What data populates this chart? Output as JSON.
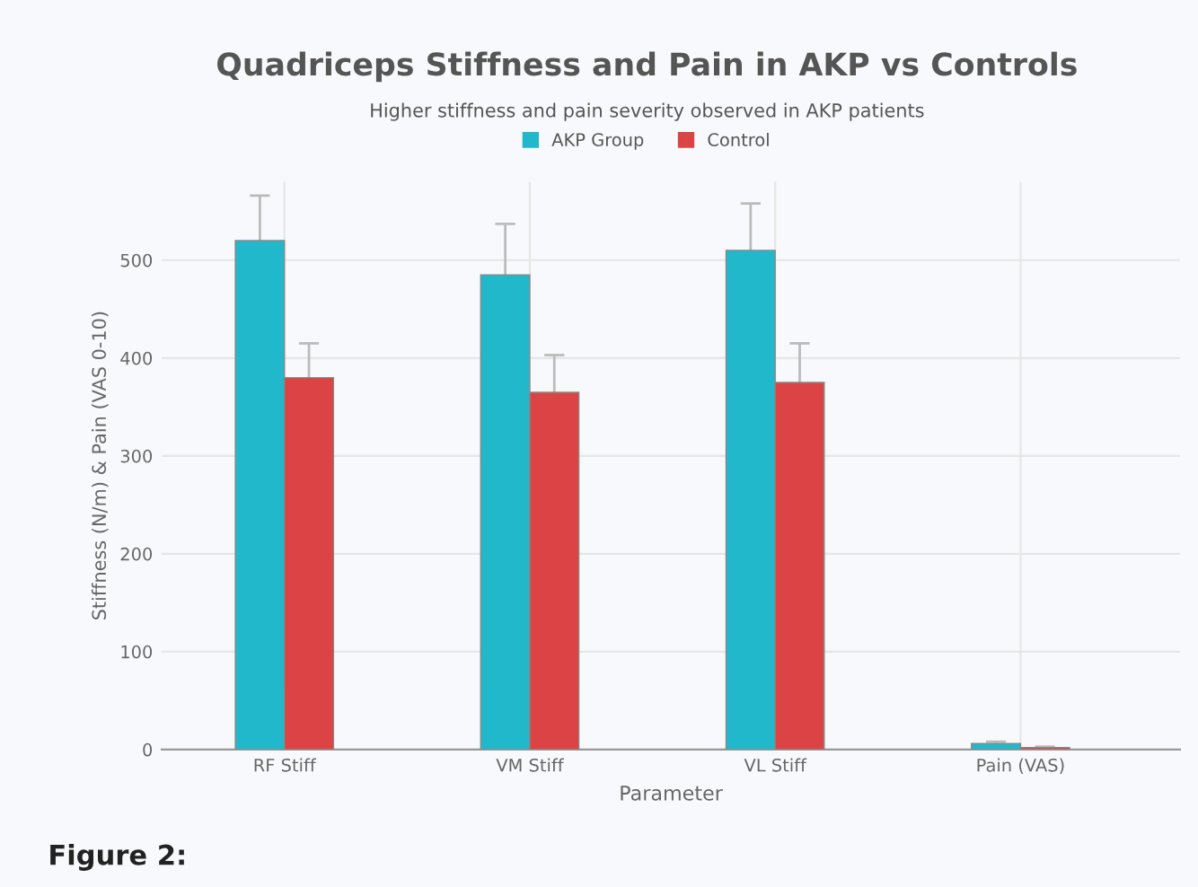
{
  "chart_data": {
    "type": "bar",
    "title": "Quadriceps Stiffness and Pain in AKP vs Controls",
    "subtitle": "Higher stiffness and pain severity observed in AKP patients",
    "xlabel": "Parameter",
    "ylabel": "Stiffness (N/m) & Pain (VAS 0-10)",
    "categories": [
      "RF Stiff",
      "VM Stiff",
      "VL Stiff",
      "Pain (VAS)"
    ],
    "series": [
      {
        "name": "AKP Group",
        "color": "#22b8cc",
        "values": [
          520,
          485,
          510,
          6
        ],
        "errors": [
          46,
          52,
          48,
          2
        ]
      },
      {
        "name": "Control",
        "color": "#db4344",
        "values": [
          380,
          365,
          375,
          2
        ],
        "errors": [
          35,
          38,
          40,
          1
        ]
      }
    ],
    "ylim": [
      0,
      580
    ],
    "yticks": [
      0,
      100,
      200,
      300,
      400,
      500
    ],
    "grid": true,
    "legend": "top",
    "annotations": [
      "Figure 2:"
    ]
  }
}
